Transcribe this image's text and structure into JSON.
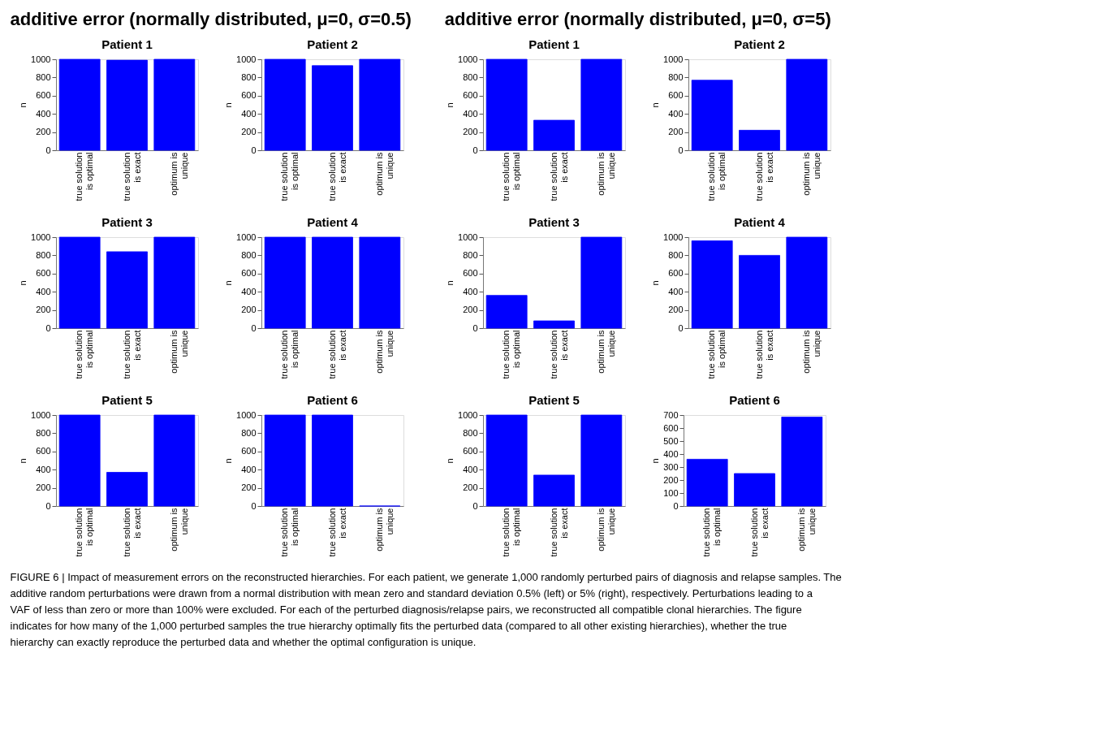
{
  "chart_data": [
    {
      "type": "bar",
      "title": "Patient 1",
      "ylabel": "n",
      "categories": [
        "true solution\nis optimal",
        "true solution\nis exact",
        "optimum is\nunique"
      ],
      "values": [
        1000,
        990,
        1000
      ],
      "color": "#0000ff",
      "ylim": [
        0,
        1000
      ],
      "yticks": [
        0,
        200,
        400,
        600,
        800,
        1000
      ],
      "annotations": [
        "additive error (normally distributed, μ=0, σ=0.5)",
        "FIGURE 6 | Impact of measurement errors on the reconstructed hierarchies. For each patient, we generate 1,000 randomly perturbed pairs of diagnosis and relapse samples. The additive random perturbations were drawn from a normal distribution with mean zero and standard deviation 0.5% (left) or 5% (right), respectively. Perturbations leading to a VAF of less than zero or more than 100% were excluded. For each of the perturbed diagnosis/relapse pairs, we reconstructed all compatible clonal hierarchies. The figure indicates for how many of the 1,000 perturbed samples the true hierarchy optimally fits the perturbed data (compared to all other existing hierarchies), whether the true hierarchy can exactly reproduce the perturbed data and whether the optimal configuration is unique."
      ]
    },
    {
      "type": "bar",
      "title": "Patient 2",
      "ylabel": "n",
      "categories": [
        "true solution\nis optimal",
        "true solution\nis exact",
        "optimum is\nunique"
      ],
      "values": [
        1000,
        930,
        1000
      ],
      "color": "#0000ff",
      "ylim": [
        0,
        1000
      ],
      "yticks": [
        0,
        200,
        400,
        600,
        800,
        1000
      ]
    },
    {
      "type": "bar",
      "title": "Patient 3",
      "ylabel": "n",
      "categories": [
        "true solution\nis optimal",
        "true solution\nis exact",
        "optimum is\nunique"
      ],
      "values": [
        1000,
        840,
        1000
      ],
      "color": "#0000ff",
      "ylim": [
        0,
        1000
      ],
      "yticks": [
        0,
        200,
        400,
        600,
        800,
        1000
      ]
    },
    {
      "type": "bar",
      "title": "Patient 4",
      "ylabel": "n",
      "categories": [
        "true solution\nis optimal",
        "true solution\nis exact",
        "optimum is\nunique"
      ],
      "values": [
        1000,
        1000,
        1000
      ],
      "color": "#0000ff",
      "ylim": [
        0,
        1000
      ],
      "yticks": [
        0,
        200,
        400,
        600,
        800,
        1000
      ]
    },
    {
      "type": "bar",
      "title": "Patient 5",
      "ylabel": "n",
      "categories": [
        "true solution\nis optimal",
        "true solution\nis exact",
        "optimum is\nunique"
      ],
      "values": [
        1000,
        370,
        1000
      ],
      "color": "#0000ff",
      "ylim": [
        0,
        1000
      ],
      "yticks": [
        0,
        200,
        400,
        600,
        800,
        1000
      ]
    },
    {
      "type": "bar",
      "title": "Patient 6",
      "ylabel": "n",
      "categories": [
        "true solution\nis optimal",
        "true solution\nis exact",
        "optimum is\nunique"
      ],
      "values": [
        1000,
        1000,
        0
      ],
      "color": "#0000ff",
      "ylim": [
        0,
        1000
      ],
      "yticks": [
        0,
        200,
        400,
        600,
        800,
        1000
      ]
    },
    {
      "type": "bar",
      "title": "Patient 1",
      "ylabel": "n",
      "categories": [
        "true solution\nis optimal",
        "true solution\nis exact",
        "optimum is\nunique"
      ],
      "values": [
        1000,
        330,
        1000
      ],
      "color": "#0000ff",
      "ylim": [
        0,
        1000
      ],
      "yticks": [
        0,
        200,
        400,
        600,
        800,
        1000
      ],
      "annotations": [
        "additive error (normally distributed, μ=0, σ=5)"
      ]
    },
    {
      "type": "bar",
      "title": "Patient 2",
      "ylabel": "n",
      "categories": [
        "true solution\nis optimal",
        "true solution\nis exact",
        "optimum is\nunique"
      ],
      "values": [
        770,
        220,
        1000
      ],
      "color": "#0000ff",
      "ylim": [
        0,
        1000
      ],
      "yticks": [
        0,
        200,
        400,
        600,
        800,
        1000
      ]
    },
    {
      "type": "bar",
      "title": "Patient 3",
      "ylabel": "n",
      "categories": [
        "true solution\nis optimal",
        "true solution\nis exact",
        "optimum is\nunique"
      ],
      "values": [
        360,
        80,
        1000
      ],
      "color": "#0000ff",
      "ylim": [
        0,
        1000
      ],
      "yticks": [
        0,
        200,
        400,
        600,
        800,
        1000
      ]
    },
    {
      "type": "bar",
      "title": "Patient 4",
      "ylabel": "n",
      "categories": [
        "true solution\nis optimal",
        "true solution\nis exact",
        "optimum is\nunique"
      ],
      "values": [
        960,
        800,
        1000
      ],
      "color": "#0000ff",
      "ylim": [
        0,
        1000
      ],
      "yticks": [
        0,
        200,
        400,
        600,
        800,
        1000
      ]
    },
    {
      "type": "bar",
      "title": "Patient 5",
      "ylabel": "n",
      "categories": [
        "true solution\nis optimal",
        "true solution\nis exact",
        "optimum is\nunique"
      ],
      "values": [
        1000,
        340,
        1000
      ],
      "color": "#0000ff",
      "ylim": [
        0,
        1000
      ],
      "yticks": [
        0,
        200,
        400,
        600,
        800,
        1000
      ]
    },
    {
      "type": "bar",
      "title": "Patient 6",
      "ylabel": "n",
      "categories": [
        "true solution\nis optimal",
        "true solution\nis exact",
        "optimum is\nunique"
      ],
      "values": [
        360,
        250,
        685
      ],
      "color": "#0000ff",
      "ylim": [
        0,
        700
      ],
      "yticks": [
        0,
        100,
        200,
        300,
        400,
        500,
        600,
        700
      ]
    }
  ]
}
